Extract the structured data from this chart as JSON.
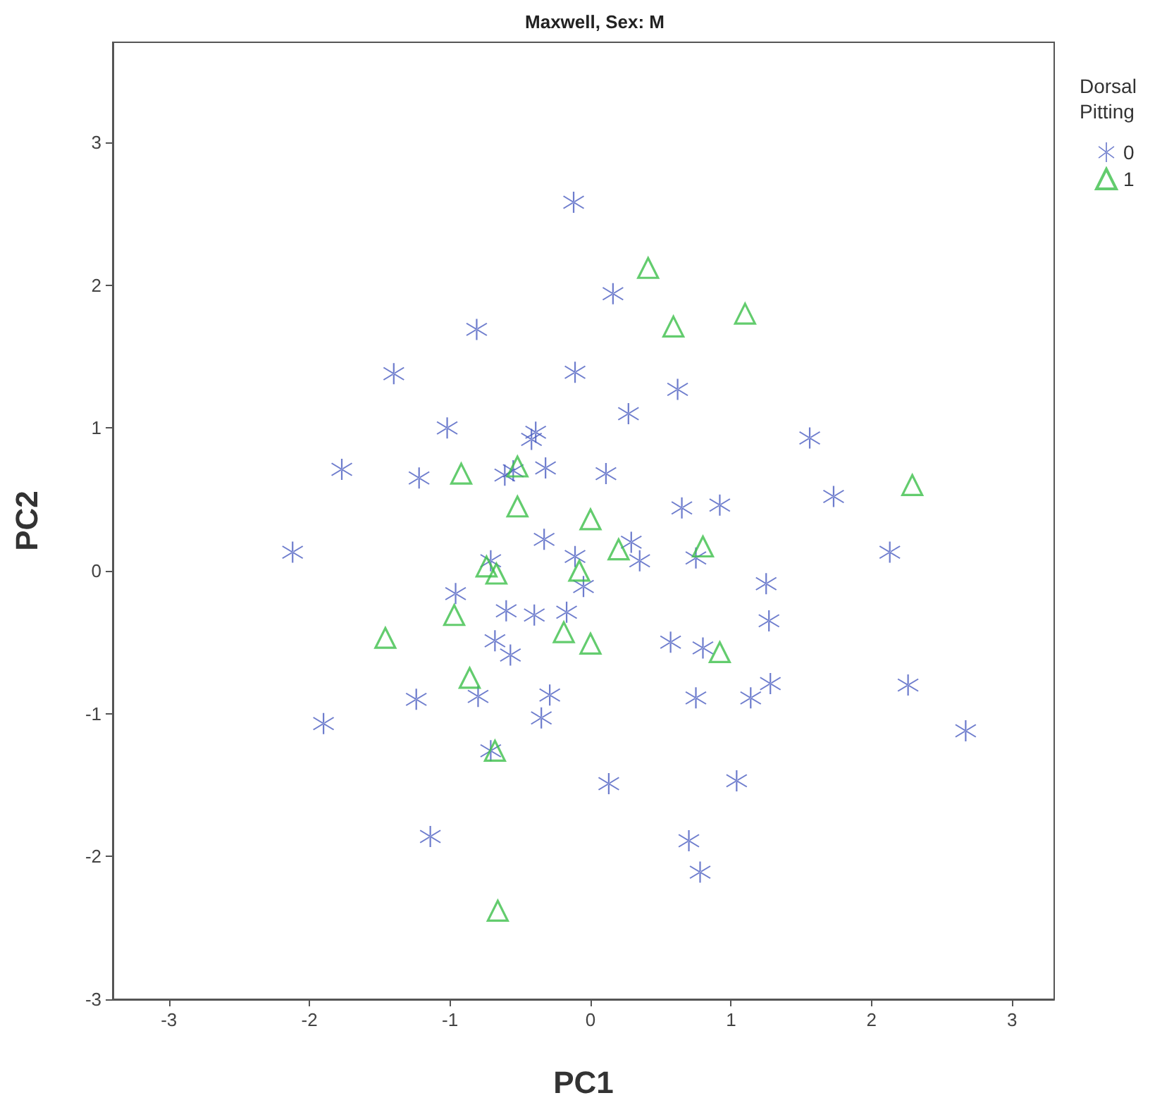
{
  "chart_data": {
    "type": "scatter",
    "title": "Maxwell, Sex: M",
    "xlabel": "PC1",
    "ylabel": "PC2",
    "legend_title": "Dorsal Pitting",
    "legend": "top right",
    "grid": false,
    "xlim": [
      -3.4,
      3.3
    ],
    "ylim": [
      -3,
      3.7
    ],
    "xticks": [
      -3,
      -2,
      -1,
      0,
      1,
      2,
      3
    ],
    "yticks": [
      -3,
      -2,
      -1,
      0,
      1,
      2,
      3
    ],
    "series": [
      {
        "name": "0",
        "color": "#4a5cc0",
        "marker": "cross",
        "x": [
          -0.12,
          0.16,
          -0.81,
          -1.4,
          -0.11,
          0.62,
          0.27,
          -1.02,
          -0.39,
          -0.42,
          1.56,
          -1.77,
          -1.22,
          -0.61,
          -0.55,
          -0.32,
          0.11,
          1.73,
          0.65,
          0.92,
          -2.12,
          -0.33,
          0.29,
          -0.11,
          0.35,
          0.75,
          2.13,
          -0.71,
          -0.05,
          1.25,
          -0.96,
          -0.4,
          -0.17,
          -0.68,
          -0.57,
          -0.6,
          1.27,
          0.57,
          0.8,
          1.28,
          2.26,
          -1.24,
          -0.8,
          -0.29,
          0.75,
          1.14,
          -0.35,
          -1.9,
          2.67,
          -0.71,
          0.13,
          1.04,
          -1.14,
          0.7,
          0.78
        ],
        "values": [
          2.58,
          1.94,
          1.69,
          1.38,
          1.39,
          1.27,
          1.1,
          1.0,
          0.97,
          0.92,
          0.93,
          0.71,
          0.65,
          0.67,
          0.7,
          0.72,
          0.68,
          0.52,
          0.44,
          0.46,
          0.13,
          0.22,
          0.2,
          0.1,
          0.07,
          0.09,
          0.13,
          0.07,
          -0.11,
          -0.09,
          -0.16,
          -0.31,
          -0.29,
          -0.49,
          -0.59,
          -0.28,
          -0.35,
          -0.5,
          -0.54,
          -0.79,
          -0.8,
          -0.9,
          -0.88,
          -0.87,
          -0.89,
          -0.89,
          -1.03,
          -1.07,
          -1.12,
          -1.26,
          -1.49,
          -1.47,
          -1.86,
          -1.89,
          -2.11
        ]
      },
      {
        "name": "1",
        "color": "#3cbf4a",
        "marker": "triangle",
        "x": [
          0.41,
          0.59,
          1.1,
          -0.92,
          -0.52,
          -0.52,
          0.0,
          2.29,
          0.8,
          0.2,
          -0.74,
          -0.67,
          -0.08,
          -0.97,
          -1.46,
          -0.19,
          0.0,
          0.92,
          -0.86,
          -0.68,
          -0.66
        ],
        "values": [
          2.12,
          1.71,
          1.8,
          0.68,
          0.73,
          0.45,
          0.36,
          0.6,
          0.17,
          0.15,
          0.03,
          -0.02,
          0.0,
          -0.31,
          -0.47,
          -0.43,
          -0.51,
          -0.57,
          -0.75,
          -1.26,
          -2.38
        ]
      }
    ]
  }
}
